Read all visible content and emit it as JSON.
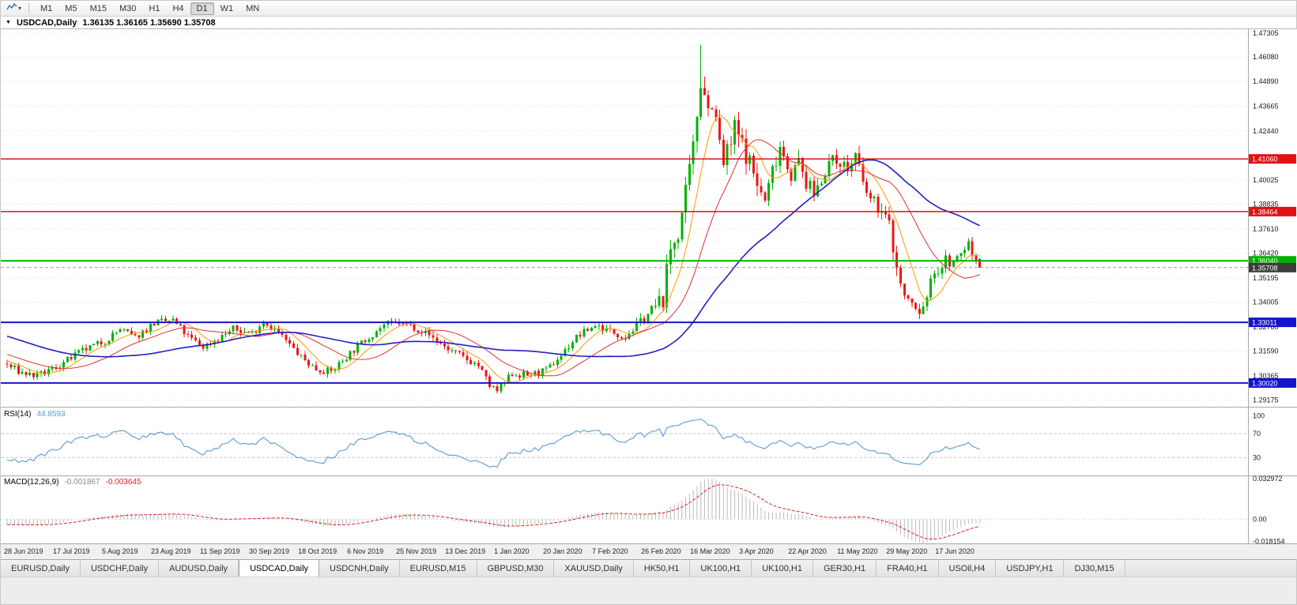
{
  "toolbar": {
    "chart_type_icon": "line-chart-icon",
    "dropdown_icon": "dropdown-caret-icon",
    "timeframes": [
      "M1",
      "M5",
      "M15",
      "M30",
      "H1",
      "H4",
      "D1",
      "W1",
      "MN"
    ],
    "active_timeframe": "D1"
  },
  "chart_header": {
    "collapse_icon": "collapse-triangle-icon",
    "title": "USDCAD,Daily",
    "quote": "1.36135 1.36165 1.35690 1.35708"
  },
  "price_axis": {
    "ticks": [
      "1.47305",
      "1.46080",
      "1.44890",
      "1.43665",
      "1.42440",
      "1.40025",
      "1.38835",
      "1.37610",
      "1.36420",
      "1.35195",
      "1.34005",
      "1.32780",
      "1.31590",
      "1.30365",
      "1.29175"
    ]
  },
  "levels": {
    "resistance": [
      {
        "price": 1.4106,
        "label": "1.41060",
        "color": "#e01212"
      },
      {
        "price": 1.38464,
        "label": "1.38464",
        "color": "#e01212"
      }
    ],
    "pivot": [
      {
        "price": 1.3604,
        "label": "1.36040",
        "color": "#00b200"
      }
    ],
    "support": [
      {
        "price": 1.33011,
        "label": "1.33011",
        "color": "#1414cc"
      },
      {
        "price": 1.3002,
        "label": "1.30020",
        "color": "#1414cc"
      }
    ],
    "bid": {
      "price": 1.35708,
      "label": "1.35708",
      "color": "#3c3c3c"
    }
  },
  "rsi_panel": {
    "label": "RSI(14)",
    "value": "44.8593",
    "axis_ticks": [
      "100",
      "70",
      "30"
    ],
    "upper_level": 70,
    "lower_level": 30,
    "line_color": "#5b9bd5"
  },
  "macd_panel": {
    "label": "MACD(12,26,9)",
    "main_value": "-0.001867",
    "signal_value": "-0.003645",
    "axis_ticks": [
      "0.032972",
      "0.00",
      "-0.018154"
    ],
    "axis_max": 0.032972,
    "axis_min": -0.018154,
    "histogram_color": "#b9b9b9",
    "signal_color": "#e02020"
  },
  "time_axis": {
    "bars_per_label": 13,
    "labels": [
      "28 Jun 2019",
      "17 Jul 2019",
      "5 Aug 2019",
      "23 Aug 2019",
      "11 Sep 2019",
      "30 Sep 2019",
      "18 Oct 2019",
      "6 Nov 2019",
      "25 Nov 2019",
      "13 Dec 2019",
      "1 Jan 2020",
      "20 Jan 2020",
      "7 Feb 2020",
      "26 Feb 2020",
      "16 Mar 2020",
      "3 Apr 2020",
      "22 Apr 2020",
      "11 May 2020",
      "29 May 2020",
      "17 Jun 2020"
    ]
  },
  "tabs": {
    "items": [
      "EURUSD,Daily",
      "USDCHF,Daily",
      "AUDUSD,Daily",
      "USDCAD,Daily",
      "USDCNH,Daily",
      "EURUSD,M15",
      "GBPUSD,M30",
      "XAUUSD,Daily",
      "HK50,H1",
      "UK100,H1",
      "UK100,H1",
      "GER30,H1",
      "FRA40,H1",
      "USOil,H4",
      "USDJPY,H1",
      "DJ30,M15"
    ],
    "active": "USDCAD,Daily"
  },
  "chart_data": {
    "type": "candlestick",
    "symbol": "USDCAD",
    "timeframe": "Daily",
    "last_quote": {
      "open": 1.36135,
      "high": 1.36165,
      "low": 1.3569,
      "close": 1.35708
    },
    "y_range": [
      1.2885,
      1.4745
    ],
    "bar_count": 259,
    "noise_seed": 7,
    "up_color": "#00b200",
    "down_color": "#f01515",
    "ma_fast": {
      "period": 8,
      "color": "#ff9800"
    },
    "ma_mid": {
      "period": 20,
      "color": "#e03030"
    },
    "ma_slow": {
      "period": 50,
      "color": "#2020c0"
    },
    "price_anchors": [
      [
        -60,
        1.343
      ],
      [
        -30,
        1.327
      ],
      [
        -10,
        1.314
      ],
      [
        0,
        1.309
      ],
      [
        4,
        1.3052
      ],
      [
        8,
        1.3035
      ],
      [
        13,
        1.308
      ],
      [
        20,
        1.316
      ],
      [
        26,
        1.321
      ],
      [
        30,
        1.3268
      ],
      [
        34,
        1.3225
      ],
      [
        39,
        1.3298
      ],
      [
        44,
        1.331
      ],
      [
        48,
        1.323
      ],
      [
        52,
        1.318
      ],
      [
        56,
        1.3222
      ],
      [
        60,
        1.3268
      ],
      [
        65,
        1.3245
      ],
      [
        68,
        1.3308
      ],
      [
        72,
        1.325
      ],
      [
        78,
        1.3128
      ],
      [
        82,
        1.307
      ],
      [
        86,
        1.3058
      ],
      [
        91,
        1.315
      ],
      [
        96,
        1.323
      ],
      [
        100,
        1.3288
      ],
      [
        104,
        1.3298
      ],
      [
        108,
        1.3278
      ],
      [
        112,
        1.3238
      ],
      [
        117,
        1.3168
      ],
      [
        121,
        1.3128
      ],
      [
        125,
        1.3088
      ],
      [
        128,
        1.2988
      ],
      [
        130,
        1.2962
      ],
      [
        134,
        1.3048
      ],
      [
        138,
        1.304
      ],
      [
        143,
        1.3062
      ],
      [
        147,
        1.314
      ],
      [
        151,
        1.3228
      ],
      [
        156,
        1.3288
      ],
      [
        160,
        1.3258
      ],
      [
        164,
        1.323
      ],
      [
        169,
        1.3322
      ],
      [
        172,
        1.338
      ],
      [
        174,
        1.342
      ],
      [
        176,
        1.366
      ],
      [
        178,
        1.375
      ],
      [
        180,
        1.392
      ],
      [
        182,
        1.415
      ],
      [
        184,
        1.45
      ],
      [
        185,
        1.4455
      ],
      [
        186,
        1.435
      ],
      [
        187,
        1.44
      ],
      [
        188,
        1.428
      ],
      [
        190,
        1.408
      ],
      [
        192,
        1.418
      ],
      [
        193,
        1.4255
      ],
      [
        195,
        1.4175
      ],
      [
        197,
        1.409
      ],
      [
        199,
        1.398
      ],
      [
        201,
        1.3895
      ],
      [
        203,
        1.405
      ],
      [
        205,
        1.4175
      ],
      [
        207,
        1.408
      ],
      [
        208,
        1.403
      ],
      [
        210,
        1.409
      ],
      [
        212,
        1.3985
      ],
      [
        214,
        1.3935
      ],
      [
        216,
        1.401
      ],
      [
        218,
        1.409
      ],
      [
        221,
        1.4098
      ],
      [
        223,
        1.405
      ],
      [
        225,
        1.4125
      ],
      [
        227,
        1.398
      ],
      [
        229,
        1.3905
      ],
      [
        231,
        1.3872
      ],
      [
        234,
        1.3782
      ],
      [
        236,
        1.3565
      ],
      [
        238,
        1.3425
      ],
      [
        240,
        1.3392
      ],
      [
        242,
        1.3335
      ],
      [
        244,
        1.3432
      ],
      [
        246,
        1.3558
      ],
      [
        247,
        1.3552
      ],
      [
        249,
        1.3608
      ],
      [
        251,
        1.3585
      ],
      [
        253,
        1.364
      ],
      [
        255,
        1.3692
      ],
      [
        256,
        1.3635
      ],
      [
        257,
        1.3613
      ],
      [
        258,
        1.35708
      ]
    ],
    "volatility_anchors": [
      [
        -60,
        1.0
      ],
      [
        165,
        1.0
      ],
      [
        172,
        1.8
      ],
      [
        176,
        3.2
      ],
      [
        186,
        3.6
      ],
      [
        200,
        2.6
      ],
      [
        220,
        1.8
      ],
      [
        235,
        2.2
      ],
      [
        245,
        1.6
      ],
      [
        258,
        1.2
      ]
    ],
    "forced_bars": [
      {
        "index": 8,
        "low": 1.3018
      },
      {
        "index": 130,
        "low": 1.2952
      },
      {
        "index": 184,
        "high": 1.4668
      },
      {
        "index": 242,
        "low": 1.3317
      },
      {
        "index": 255,
        "high": 1.3715
      },
      {
        "index": 258,
        "open": 1.36135,
        "high": 1.36165,
        "low": 1.3569,
        "close": 1.35708
      }
    ]
  }
}
